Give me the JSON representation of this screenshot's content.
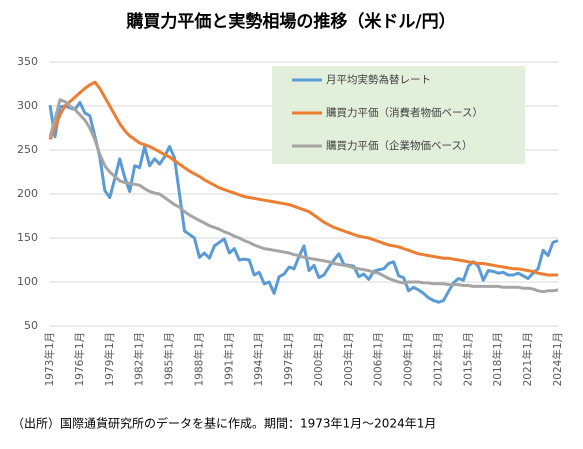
{
  "chart_data": {
    "type": "line",
    "title": "購買力平価と実勢相場の推移（米ドル/円）",
    "source": "（出所）国際通貨研究所のデータを基に作成。期間：1973年1月～2024年1月",
    "categories": [
      "1973年1月",
      null,
      null,
      null,
      null,
      null,
      "1976年1月",
      null,
      null,
      null,
      null,
      null,
      "1979年1月",
      null,
      null,
      null,
      null,
      null,
      "1982年1月",
      null,
      null,
      null,
      null,
      null,
      "1985年1月",
      null,
      null,
      null,
      null,
      null,
      "1988年1月",
      null,
      null,
      null,
      null,
      null,
      "1991年1月",
      null,
      null,
      null,
      null,
      null,
      "1994年1月",
      null,
      null,
      null,
      null,
      null,
      "1997年1月",
      null,
      null,
      null,
      null,
      null,
      "2000年1月",
      null,
      null,
      null,
      null,
      null,
      "2003年1月",
      null,
      null,
      null,
      null,
      null,
      "2006年1月",
      null,
      null,
      null,
      null,
      null,
      "2009年1月",
      null,
      null,
      null,
      null,
      null,
      "2012年1月",
      null,
      null,
      null,
      null,
      null,
      "2015年1月",
      null,
      null,
      null,
      null,
      null,
      "2018年1月",
      null,
      null,
      null,
      null,
      null,
      "2021年1月",
      null,
      null,
      null,
      null,
      null,
      "2024年1月"
    ],
    "series": [
      {
        "name": "月平均実勢為替レート",
        "color": "#5b9bd5",
        "values": [
          301,
          265,
          299,
          300,
          298,
          296,
          304,
          292,
          289,
          266,
          242,
          204,
          196,
          217,
          240,
          219,
          203,
          232,
          230,
          254,
          232,
          240,
          234,
          242,
          254,
          241,
          200,
          158,
          154,
          150,
          128,
          133,
          127,
          141,
          145,
          149,
          133,
          138,
          125,
          126,
          125,
          108,
          111,
          98,
          100,
          87,
          106,
          109,
          117,
          115,
          129,
          141,
          113,
          119,
          105,
          108,
          117,
          125,
          132,
          120,
          119,
          118,
          106,
          109,
          103,
          112,
          114,
          115,
          121,
          123,
          107,
          105,
          90,
          94,
          91,
          87,
          82,
          79,
          77,
          79,
          89,
          99,
          104,
          102,
          118,
          123,
          118,
          102,
          113,
          112,
          110,
          111,
          108,
          108,
          110,
          107,
          104,
          110,
          115,
          136,
          130,
          145,
          147
        ]
      },
      {
        "name": "購買力平価（消費者物価ベース）",
        "color": "#ed7d31",
        "values": [
          262,
          275,
          290,
          300,
          305,
          310,
          315,
          320,
          324,
          327,
          320,
          310,
          300,
          290,
          280,
          272,
          266,
          262,
          258,
          256,
          254,
          251,
          248,
          245,
          242,
          238,
          234,
          230,
          226,
          223,
          220,
          216,
          213,
          210,
          207,
          205,
          203,
          201,
          199,
          197,
          196,
          195,
          194,
          193,
          192,
          191,
          190,
          189,
          188,
          186,
          184,
          182,
          180,
          176,
          172,
          168,
          165,
          162,
          160,
          158,
          156,
          154,
          152,
          151,
          150,
          148,
          146,
          144,
          142,
          141,
          140,
          138,
          136,
          134,
          132,
          131,
          130,
          129,
          128,
          127,
          127,
          126,
          125,
          124,
          123,
          122,
          121,
          121,
          120,
          119,
          118,
          117,
          116,
          115,
          115,
          114,
          113,
          112,
          110,
          109,
          108,
          108,
          108
        ]
      },
      {
        "name": "購買力平価（企業物価ベース）",
        "color": "#a5a5a5",
        "values": [
          265,
          285,
          307,
          305,
          300,
          296,
          290,
          284,
          275,
          262,
          245,
          232,
          225,
          220,
          215,
          213,
          212,
          211,
          210,
          206,
          203,
          201,
          200,
          196,
          192,
          188,
          185,
          180,
          176,
          173,
          170,
          167,
          164,
          162,
          160,
          157,
          155,
          152,
          150,
          147,
          145,
          142,
          140,
          138,
          137,
          136,
          135,
          134,
          133,
          131,
          130,
          128,
          127,
          126,
          125,
          124,
          123,
          121,
          120,
          119,
          118,
          116,
          115,
          114,
          113,
          111,
          110,
          107,
          104,
          102,
          100,
          99,
          100,
          100,
          100,
          99,
          99,
          98,
          98,
          98,
          97,
          97,
          97,
          96,
          96,
          95,
          95,
          95,
          95,
          95,
          95,
          94,
          94,
          94,
          94,
          93,
          93,
          92,
          90,
          89,
          90,
          90,
          91
        ]
      }
    ],
    "ylim": [
      50,
      350
    ],
    "yticks": [
      50,
      100,
      150,
      200,
      250,
      300,
      350
    ],
    "grid": true,
    "legend": "top-right"
  }
}
